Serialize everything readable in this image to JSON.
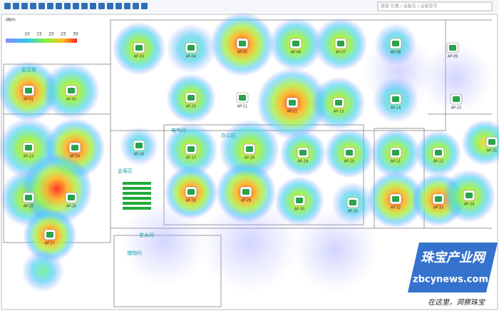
{
  "toolbar": {
    "search_placeholder": "搜索 位置 / 设备名 / 设备型号"
  },
  "legend": {
    "unit": "dBm",
    "ticks": [
      10,
      15,
      20,
      25,
      30
    ]
  },
  "rooms": [
    "会议室",
    "电气间",
    "办公区",
    "会客区",
    "茶水间",
    "储物间"
  ],
  "access_points": [
    "AP-01",
    "AP-02",
    "AP-03",
    "AP-04",
    "AP-05",
    "AP-06",
    "AP-07",
    "AP-08",
    "AP-09",
    "AP-10",
    "AP-11",
    "AP-12",
    "AP-13",
    "AP-14",
    "AP-15",
    "AP-16",
    "AP-17",
    "AP-18",
    "AP-19",
    "AP-20",
    "AP-21",
    "AP-22",
    "AP-23",
    "AP-24",
    "AP-25",
    "AP-26",
    "AP-27",
    "AP-28",
    "AP-29",
    "AP-30",
    "AP-31",
    "AP-32",
    "AP-33",
    "AP-34",
    "AP-35"
  ],
  "watermark": {
    "brand": "珠宝产业网",
    "site": "zbcynews.com",
    "slogan": "在这里，洞察珠宝"
  }
}
